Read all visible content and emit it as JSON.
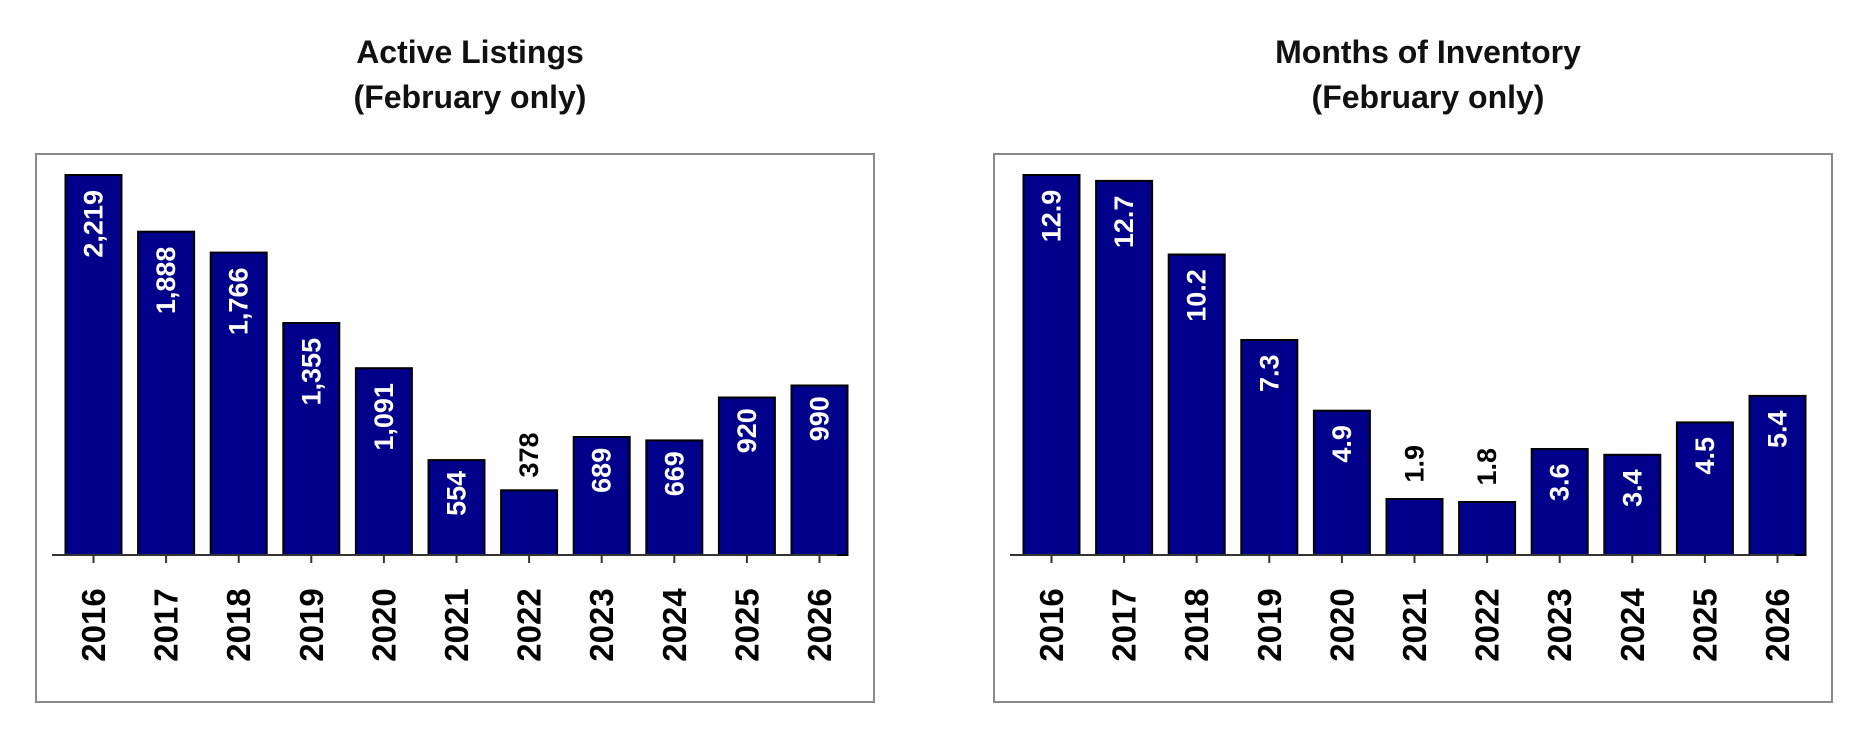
{
  "colors": {
    "bar": "#00008b",
    "bar_outline": "#000000",
    "label_inside": "#ffffff",
    "label_outside": "#000000",
    "axis": "#333333",
    "frame": "#8a8a8a"
  },
  "charts": [
    {
      "title_line1": "Active Listings",
      "title_line2": "(February only)"
    },
    {
      "title_line1": "Months of Inventory",
      "title_line2": "(February only)"
    }
  ],
  "chart_data": [
    {
      "type": "bar",
      "title": "Active Listings (February only)",
      "xlabel": "",
      "ylabel": "",
      "categories": [
        "2016",
        "2017",
        "2018",
        "2019",
        "2020",
        "2021",
        "2022",
        "2023",
        "2024",
        "2025",
        "2026"
      ],
      "values": [
        2219,
        1888,
        1766,
        1355,
        1091,
        554,
        378,
        689,
        669,
        920,
        990
      ],
      "value_labels": [
        "2,219",
        "1,888",
        "1,766",
        "1,355",
        "1,091",
        "554",
        "378",
        "689",
        "669",
        "920",
        "990"
      ],
      "ylim": [
        0,
        2219
      ],
      "grid": false
    },
    {
      "type": "bar",
      "title": "Months of Inventory (February only)",
      "xlabel": "",
      "ylabel": "",
      "categories": [
        "2016",
        "2017",
        "2018",
        "2019",
        "2020",
        "2021",
        "2022",
        "2023",
        "2024",
        "2025",
        "2026"
      ],
      "values": [
        12.9,
        12.7,
        10.2,
        7.3,
        4.9,
        1.9,
        1.8,
        3.6,
        3.4,
        4.5,
        5.4
      ],
      "value_labels": [
        "12.9",
        "12.7",
        "10.2",
        "7.3",
        "4.9",
        "1.9",
        "1.8",
        "3.6",
        "3.4",
        "4.5",
        "5.4"
      ],
      "ylim": [
        0,
        12.9
      ],
      "grid": false
    }
  ]
}
